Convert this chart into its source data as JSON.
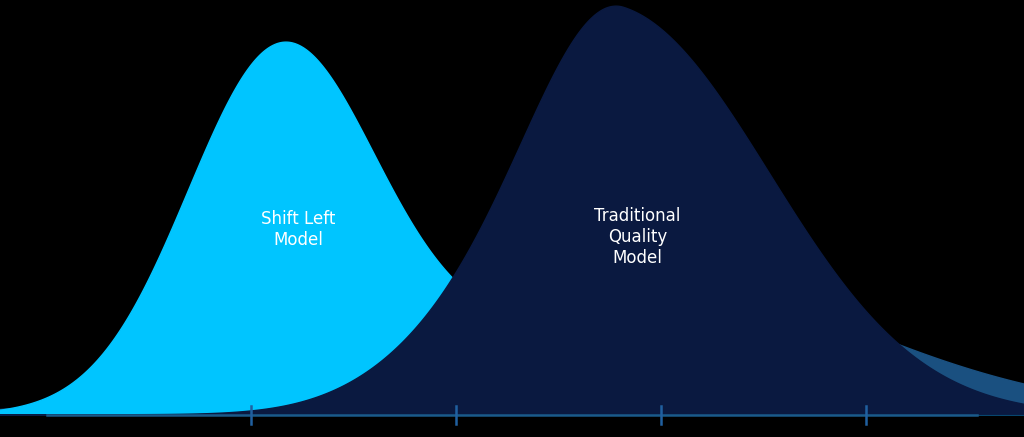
{
  "background_color": "#000000",
  "shift_left_color": "#00C5FF",
  "traditional_color": "#0A1940",
  "trad_base_color": "#1A5080",
  "shift_left_label": "Shift Left\nModel",
  "traditional_label": "Traditional\nQuality\nModel",
  "label_color": "#FFFFFF",
  "axis_color": "#1A5A8A",
  "tick_color": "#2060A0",
  "x_ticks": [
    0.22,
    0.44,
    0.66,
    0.88
  ],
  "x_min": -0.05,
  "x_max": 1.05,
  "y_min": 0.0,
  "y_max": 1.0,
  "label_font_size": 12
}
